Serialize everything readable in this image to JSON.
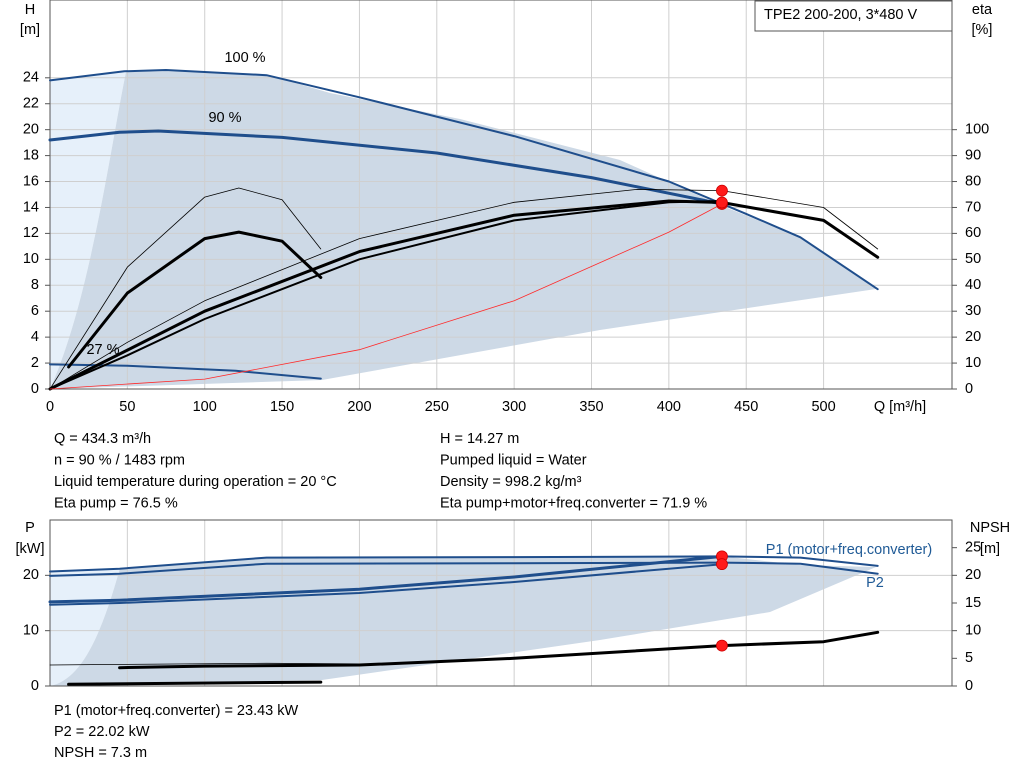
{
  "chart_data": [
    {
      "type": "line",
      "title": "TPE2 200-200, 3*480 V",
      "ylabel": "H",
      "yunit": "[m]",
      "y2label": "eta",
      "y2unit": "[%]",
      "xlabel": "Q [m³/h]",
      "xlim": [
        0,
        583
      ],
      "xticks": [
        0,
        50,
        100,
        150,
        200,
        250,
        300,
        350,
        400,
        450,
        500
      ],
      "ylim": [
        0,
        30
      ],
      "yticks": [
        0,
        2,
        4,
        6,
        8,
        10,
        12,
        14,
        16,
        18,
        20,
        22,
        24
      ],
      "y2lim": [
        0,
        150
      ],
      "y2ticks": [
        0,
        10,
        20,
        30,
        40,
        50,
        60,
        70,
        80,
        90,
        100
      ],
      "grid": true,
      "series": [
        {
          "color": "#1f4e8c",
          "weight": "medium",
          "x": [
            0,
            48,
            75,
            140,
            200,
            300,
            400,
            450,
            485,
            535
          ],
          "values": [
            23.8,
            24.5,
            24.6,
            24.2,
            22.5,
            19.5,
            16.0,
            13.5,
            11.7,
            7.7
          ]
        },
        {
          "color": "#1f4e8c",
          "weight": "thick",
          "x": [
            0,
            45,
            70,
            150,
            250,
            350,
            434.3
          ],
          "values": [
            19.2,
            19.8,
            19.9,
            19.4,
            18.2,
            16.3,
            14.27
          ]
        },
        {
          "color": "#1f4e8c",
          "weight": "medium",
          "x": [
            0,
            50,
            120,
            175
          ],
          "values": [
            1.9,
            1.8,
            1.4,
            0.8
          ]
        },
        {
          "color": "#000000",
          "weight": "thin",
          "axis": "y2",
          "x": [
            0,
            50,
            100,
            200,
            300,
            380,
            434.3,
            500,
            535
          ],
          "values": [
            0,
            18,
            34,
            58,
            72,
            77,
            76.5,
            70,
            54
          ]
        },
        {
          "color": "#000000",
          "weight": "thick",
          "axis": "y2",
          "x": [
            0,
            50,
            100,
            200,
            300,
            400,
            434.3,
            500,
            535
          ],
          "values": [
            0,
            15,
            30,
            53,
            67,
            72.5,
            71.9,
            65,
            50.8
          ]
        },
        {
          "color": "#000000",
          "weight": "medium",
          "axis": "y2",
          "x": [
            0,
            50,
            100,
            200,
            300,
            400,
            434.3
          ],
          "values": [
            0,
            13,
            27,
            50,
            65,
            72,
            72.5
          ]
        },
        {
          "color": "#000000",
          "weight": "thin",
          "axis": "y2",
          "x": [
            0,
            50,
            100,
            122,
            150,
            175
          ],
          "values": [
            0,
            47,
            74,
            77.5,
            73,
            54
          ]
        },
        {
          "color": "#000000",
          "weight": "thick",
          "axis": "y2",
          "x": [
            12,
            50,
            100,
            122,
            150,
            175
          ],
          "values": [
            8.5,
            37,
            58,
            60.5,
            57,
            43
          ]
        },
        {
          "color": "#ff2a2a",
          "weight": "thin",
          "x": [
            0,
            100,
            200,
            300,
            400,
            434.3
          ],
          "values": [
            0,
            0.76,
            3.03,
            6.81,
            12.1,
            14.27
          ]
        }
      ],
      "points": [
        {
          "x": 434.3,
          "y": 76.5,
          "axis": "y2"
        },
        {
          "x": 434.3,
          "y": 14.27
        },
        {
          "x": 434.3,
          "y": 71.9,
          "axis": "y2"
        }
      ],
      "annotations": [
        "100 %",
        "90 %",
        "27 %"
      ],
      "info": [
        "Q = 434.3 m³/h",
        "n = 90 % / 1483 rpm",
        "Liquid temperature during operation = 20 °C",
        "Eta pump = 76.5 %",
        "H = 14.27 m",
        "Pumped liquid = Water",
        "Density = 998.2 kg/m³",
        "Eta pump+motor+freq.converter = 71.9 %"
      ]
    },
    {
      "type": "line",
      "ylabel": "P",
      "yunit": "[kW]",
      "y2label": "NPSH",
      "y2unit": "[m]",
      "xlim": [
        0,
        583
      ],
      "ylim": [
        0,
        30
      ],
      "yticks": [
        0,
        10,
        20
      ],
      "y2lim": [
        0,
        30
      ],
      "y2ticks": [
        0,
        5,
        10,
        15,
        20,
        25
      ],
      "grid": true,
      "series": [
        {
          "color": "#1f4e8c",
          "weight": "medium",
          "x": [
            0,
            45,
            140,
            300,
            434.3,
            485,
            535
          ],
          "values": [
            20.7,
            21.2,
            23.2,
            23.3,
            23.43,
            23.2,
            21.7
          ]
        },
        {
          "color": "#1f4e8c",
          "weight": "medium",
          "x": [
            0,
            45,
            140,
            300,
            434.3,
            485,
            535
          ],
          "values": [
            19.9,
            20.3,
            22.1,
            22.2,
            22.3,
            22.1,
            20.3
          ]
        },
        {
          "color": "#1f4e8c",
          "weight": "thick",
          "x": [
            0,
            45,
            200,
            300,
            434.3
          ],
          "values": [
            15.2,
            15.5,
            17.5,
            19.7,
            23.43
          ]
        },
        {
          "color": "#1f4e8c",
          "weight": "medium",
          "x": [
            0,
            45,
            200,
            300,
            434.3
          ],
          "values": [
            14.7,
            15.0,
            16.8,
            18.8,
            22.02
          ]
        },
        {
          "color": "#000000",
          "weight": "thick",
          "axis": "y2",
          "x": [
            45,
            100,
            200,
            300,
            434.3,
            500,
            535
          ],
          "values": [
            3.3,
            3.6,
            3.8,
            5.0,
            7.3,
            8.0,
            9.7
          ]
        },
        {
          "color": "#000000",
          "weight": "thin",
          "axis": "y2",
          "x": [
            0,
            45,
            140,
            200
          ],
          "values": [
            3.8,
            3.9,
            4.1,
            4.0
          ]
        },
        {
          "color": "#000000",
          "weight": "thick",
          "x": [
            12,
            175
          ],
          "values": [
            0.3,
            0.7
          ]
        }
      ],
      "points": [
        {
          "x": 434.3,
          "y": 23.43
        },
        {
          "x": 434.3,
          "y": 22.02
        },
        {
          "x": 434.3,
          "y": 7.3,
          "axis": "y2"
        }
      ],
      "annotations": [
        "P1 (motor+freq.converter)",
        "P2"
      ],
      "info": [
        "P1 (motor+freq.converter) = 23.43 kW",
        "P2 = 22.02 kW",
        "NPSH = 7.3 m"
      ]
    }
  ]
}
